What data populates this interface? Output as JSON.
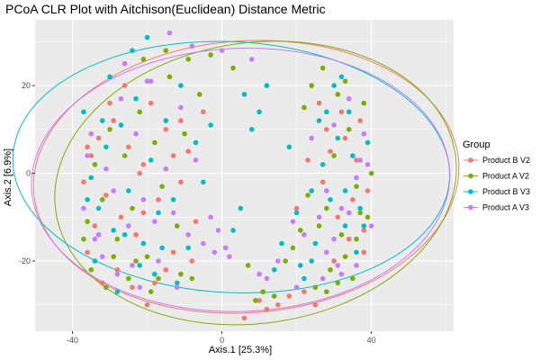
{
  "chart_data": {
    "type": "scatter",
    "title": "PCoA CLR Plot with Aitchison(Euclidean) Distance Metric",
    "xlabel": "Axis.1   [25.3%]",
    "ylabel": "Axis.2   [6.9%]",
    "xlim": [
      -50,
      62
    ],
    "ylim": [
      -36,
      35
    ],
    "xticks": [
      -40,
      0,
      40
    ],
    "yticks": [
      -20,
      0,
      20
    ],
    "grid": true,
    "legend_position": "right",
    "legend_title": "Group",
    "series": [
      {
        "name": "Product B V2",
        "color": "#F8766D",
        "points": [
          [
            -37,
            -2
          ],
          [
            -35,
            4
          ],
          [
            -33,
            8
          ],
          [
            -31,
            -5
          ],
          [
            -29,
            12
          ],
          [
            -27,
            -10
          ],
          [
            -25,
            6
          ],
          [
            -23,
            -14
          ],
          [
            -21,
            2
          ],
          [
            -19,
            16
          ],
          [
            -17,
            -6
          ],
          [
            -15,
            10
          ],
          [
            -13,
            -18
          ],
          [
            -11,
            -2
          ],
          [
            -9,
            5
          ],
          [
            -7,
            -11
          ],
          [
            -5,
            14
          ],
          [
            -36,
            -18
          ],
          [
            -32,
            -25
          ],
          [
            -28,
            -22
          ],
          [
            -24,
            -26
          ],
          [
            -20,
            -30
          ],
          [
            -18,
            -25
          ],
          [
            -30,
            16
          ],
          [
            -26,
            20
          ],
          [
            -22,
            0
          ],
          [
            -33,
            -14
          ],
          [
            -15,
            -22
          ],
          [
            -21,
            -9
          ],
          [
            -11,
            12
          ],
          [
            27,
            -2
          ],
          [
            29,
            5
          ],
          [
            31,
            -10
          ],
          [
            33,
            8
          ],
          [
            35,
            -6
          ],
          [
            37,
            12
          ],
          [
            39,
            -4
          ],
          [
            26,
            16
          ],
          [
            30,
            -20
          ],
          [
            34,
            -15
          ],
          [
            38,
            -13
          ],
          [
            25,
            -30
          ],
          [
            22,
            -27
          ],
          [
            18,
            -28
          ],
          [
            15,
            -30
          ],
          [
            36,
            3
          ],
          [
            28,
            10
          ],
          [
            32,
            14
          ],
          [
            20,
            -8
          ],
          [
            23,
            3
          ],
          [
            -36,
            6
          ],
          [
            -34,
            -12
          ],
          [
            -13,
            4
          ],
          [
            -8,
            -20
          ],
          [
            6,
            -33
          ],
          [
            10,
            -29
          ],
          [
            12,
            -31
          ],
          [
            38,
            -18
          ]
        ]
      },
      {
        "name": "Product A V2",
        "color": "#7CAE00",
        "points": [
          [
            -36,
            -11
          ],
          [
            -34,
            2
          ],
          [
            -32,
            -6
          ],
          [
            -30,
            10
          ],
          [
            -28,
            -15
          ],
          [
            -26,
            4
          ],
          [
            -24,
            -8
          ],
          [
            -22,
            14
          ],
          [
            -20,
            -19
          ],
          [
            -18,
            7
          ],
          [
            -16,
            -3
          ],
          [
            -14,
            22
          ],
          [
            -12,
            -12
          ],
          [
            -10,
            9
          ],
          [
            -8,
            -24
          ],
          [
            -6,
            18
          ],
          [
            -35,
            -22
          ],
          [
            -29,
            -19
          ],
          [
            -23,
            -20
          ],
          [
            -17,
            -24
          ],
          [
            -11,
            -23
          ],
          [
            -21,
            26
          ],
          [
            -15,
            28
          ],
          [
            -9,
            26
          ],
          [
            -3,
            27
          ],
          [
            3,
            24
          ],
          [
            28,
            -8
          ],
          [
            30,
            4
          ],
          [
            32,
            -14
          ],
          [
            34,
            10
          ],
          [
            36,
            -3
          ],
          [
            38,
            16
          ],
          [
            40,
            0
          ],
          [
            26,
            -12
          ],
          [
            29,
            -22
          ],
          [
            33,
            -19
          ],
          [
            37,
            -9
          ],
          [
            24,
            20
          ],
          [
            27,
            24
          ],
          [
            31,
            18
          ],
          [
            23,
            -5
          ],
          [
            21,
            -13
          ],
          [
            19,
            -17
          ],
          [
            17,
            -20
          ],
          [
            14,
            -28
          ],
          [
            25,
            -26
          ],
          [
            35,
            -24
          ],
          [
            39,
            -10
          ],
          [
            22,
            15
          ],
          [
            33,
            21
          ],
          [
            36,
            -15
          ],
          [
            -31,
            -26
          ],
          [
            -25,
            -24
          ],
          [
            -37,
            -15
          ],
          [
            -19,
            -27
          ],
          [
            7,
            -21
          ],
          [
            9,
            -29
          ],
          [
            11,
            -27
          ],
          [
            28,
            -27
          ],
          [
            31,
            -25
          ]
        ]
      },
      {
        "name": "Product B V3",
        "color": "#00BFC4",
        "points": [
          [
            -35,
            -1
          ],
          [
            -33,
            -8
          ],
          [
            -31,
            6
          ],
          [
            -29,
            -13
          ],
          [
            -27,
            11
          ],
          [
            -25,
            -4
          ],
          [
            -23,
            17
          ],
          [
            -21,
            -16
          ],
          [
            -19,
            3
          ],
          [
            -17,
            -9
          ],
          [
            -15,
            12
          ],
          [
            -13,
            -6
          ],
          [
            -11,
            20
          ],
          [
            -9,
            -17
          ],
          [
            -7,
            7
          ],
          [
            -5,
            -2
          ],
          [
            -3,
            11
          ],
          [
            -37,
            14
          ],
          [
            -30,
            22
          ],
          [
            -24,
            28
          ],
          [
            -20,
            31
          ],
          [
            -34,
            -20
          ],
          [
            -28,
            -27
          ],
          [
            -22,
            -21
          ],
          [
            -16,
            -17
          ],
          [
            -12,
            -25
          ],
          [
            27,
            2
          ],
          [
            29,
            -6
          ],
          [
            31,
            8
          ],
          [
            33,
            -12
          ],
          [
            35,
            4
          ],
          [
            37,
            -8
          ],
          [
            39,
            7
          ],
          [
            25,
            -16
          ],
          [
            28,
            14
          ],
          [
            30,
            20
          ],
          [
            32,
            22
          ],
          [
            34,
            14
          ],
          [
            36,
            -18
          ],
          [
            38,
            -12
          ],
          [
            24,
            -20
          ],
          [
            22,
            -24
          ],
          [
            20,
            -9
          ],
          [
            18,
            6
          ],
          [
            16,
            -16
          ],
          [
            14,
            -22
          ],
          [
            12,
            20
          ],
          [
            10,
            14
          ],
          [
            8,
            10
          ],
          [
            6,
            18
          ],
          [
            26,
            12
          ],
          [
            24,
            -4
          ],
          [
            -36,
            -6
          ],
          [
            -32,
            12
          ],
          [
            -26,
            -14
          ],
          [
            -18,
            -23
          ],
          [
            3,
            -13
          ],
          [
            5,
            -8
          ],
          [
            21,
            -21
          ],
          [
            33,
            -4
          ]
        ]
      },
      {
        "name": "Product A V3",
        "color": "#C77CFF",
        "points": [
          [
            -37,
            -8
          ],
          [
            -35,
            9
          ],
          [
            -33,
            -14
          ],
          [
            -31,
            1
          ],
          [
            -29,
            -4
          ],
          [
            -27,
            17
          ],
          [
            -25,
            -12
          ],
          [
            -23,
            9
          ],
          [
            -21,
            -6
          ],
          [
            -19,
            21
          ],
          [
            -17,
            -20
          ],
          [
            -15,
            1
          ],
          [
            -13,
            -9
          ],
          [
            -11,
            15
          ],
          [
            -9,
            -14
          ],
          [
            -7,
            3
          ],
          [
            -5,
            -16
          ],
          [
            -3,
            -10
          ],
          [
            -1,
            -13
          ],
          [
            1,
            -17
          ],
          [
            -34,
            -15
          ],
          [
            -28,
            -23
          ],
          [
            -22,
            -26
          ],
          [
            -26,
            25
          ],
          [
            -20,
            21
          ],
          [
            -14,
            32
          ],
          [
            -8,
            29
          ],
          [
            0,
            28
          ],
          [
            8,
            26
          ],
          [
            28,
            -4
          ],
          [
            30,
            11
          ],
          [
            32,
            -8
          ],
          [
            34,
            17
          ],
          [
            36,
            -1
          ],
          [
            38,
            9
          ],
          [
            40,
            -12
          ],
          [
            26,
            -10
          ],
          [
            28,
            -18
          ],
          [
            32,
            -23
          ],
          [
            36,
            -21
          ],
          [
            24,
            8
          ],
          [
            22,
            -14
          ],
          [
            19,
            -11
          ],
          [
            15,
            -20
          ],
          [
            12,
            -24
          ],
          [
            2,
            -19
          ],
          [
            -2,
            -18
          ],
          [
            10,
            -23
          ],
          [
            30,
            -15
          ],
          [
            37,
            3
          ],
          [
            34,
            -9
          ],
          [
            -36,
            4
          ],
          [
            -32,
            -19
          ],
          [
            -24,
            -21
          ],
          [
            -18,
            -11
          ],
          [
            -12,
            -26
          ],
          [
            20,
            -26
          ],
          [
            27,
            -24
          ],
          [
            39,
            2
          ],
          [
            31,
            -21
          ]
        ]
      }
    ],
    "ellipses": [
      {
        "series": "Product B V2",
        "cx": 6.5,
        "cy": -0.8,
        "rx": 57,
        "ry": 31,
        "angle": -4
      },
      {
        "series": "Product A V2",
        "cx": 9,
        "cy": -2.2,
        "rx": 54,
        "ry": 32,
        "angle": -8
      },
      {
        "series": "Product B V3",
        "cx": 2.5,
        "cy": 1.4,
        "rx": 58.5,
        "ry": 28.6,
        "angle": 3
      },
      {
        "series": "Product A V3",
        "cx": 5,
        "cy": -1.5,
        "rx": 56,
        "ry": 30,
        "angle": -2
      }
    ]
  }
}
